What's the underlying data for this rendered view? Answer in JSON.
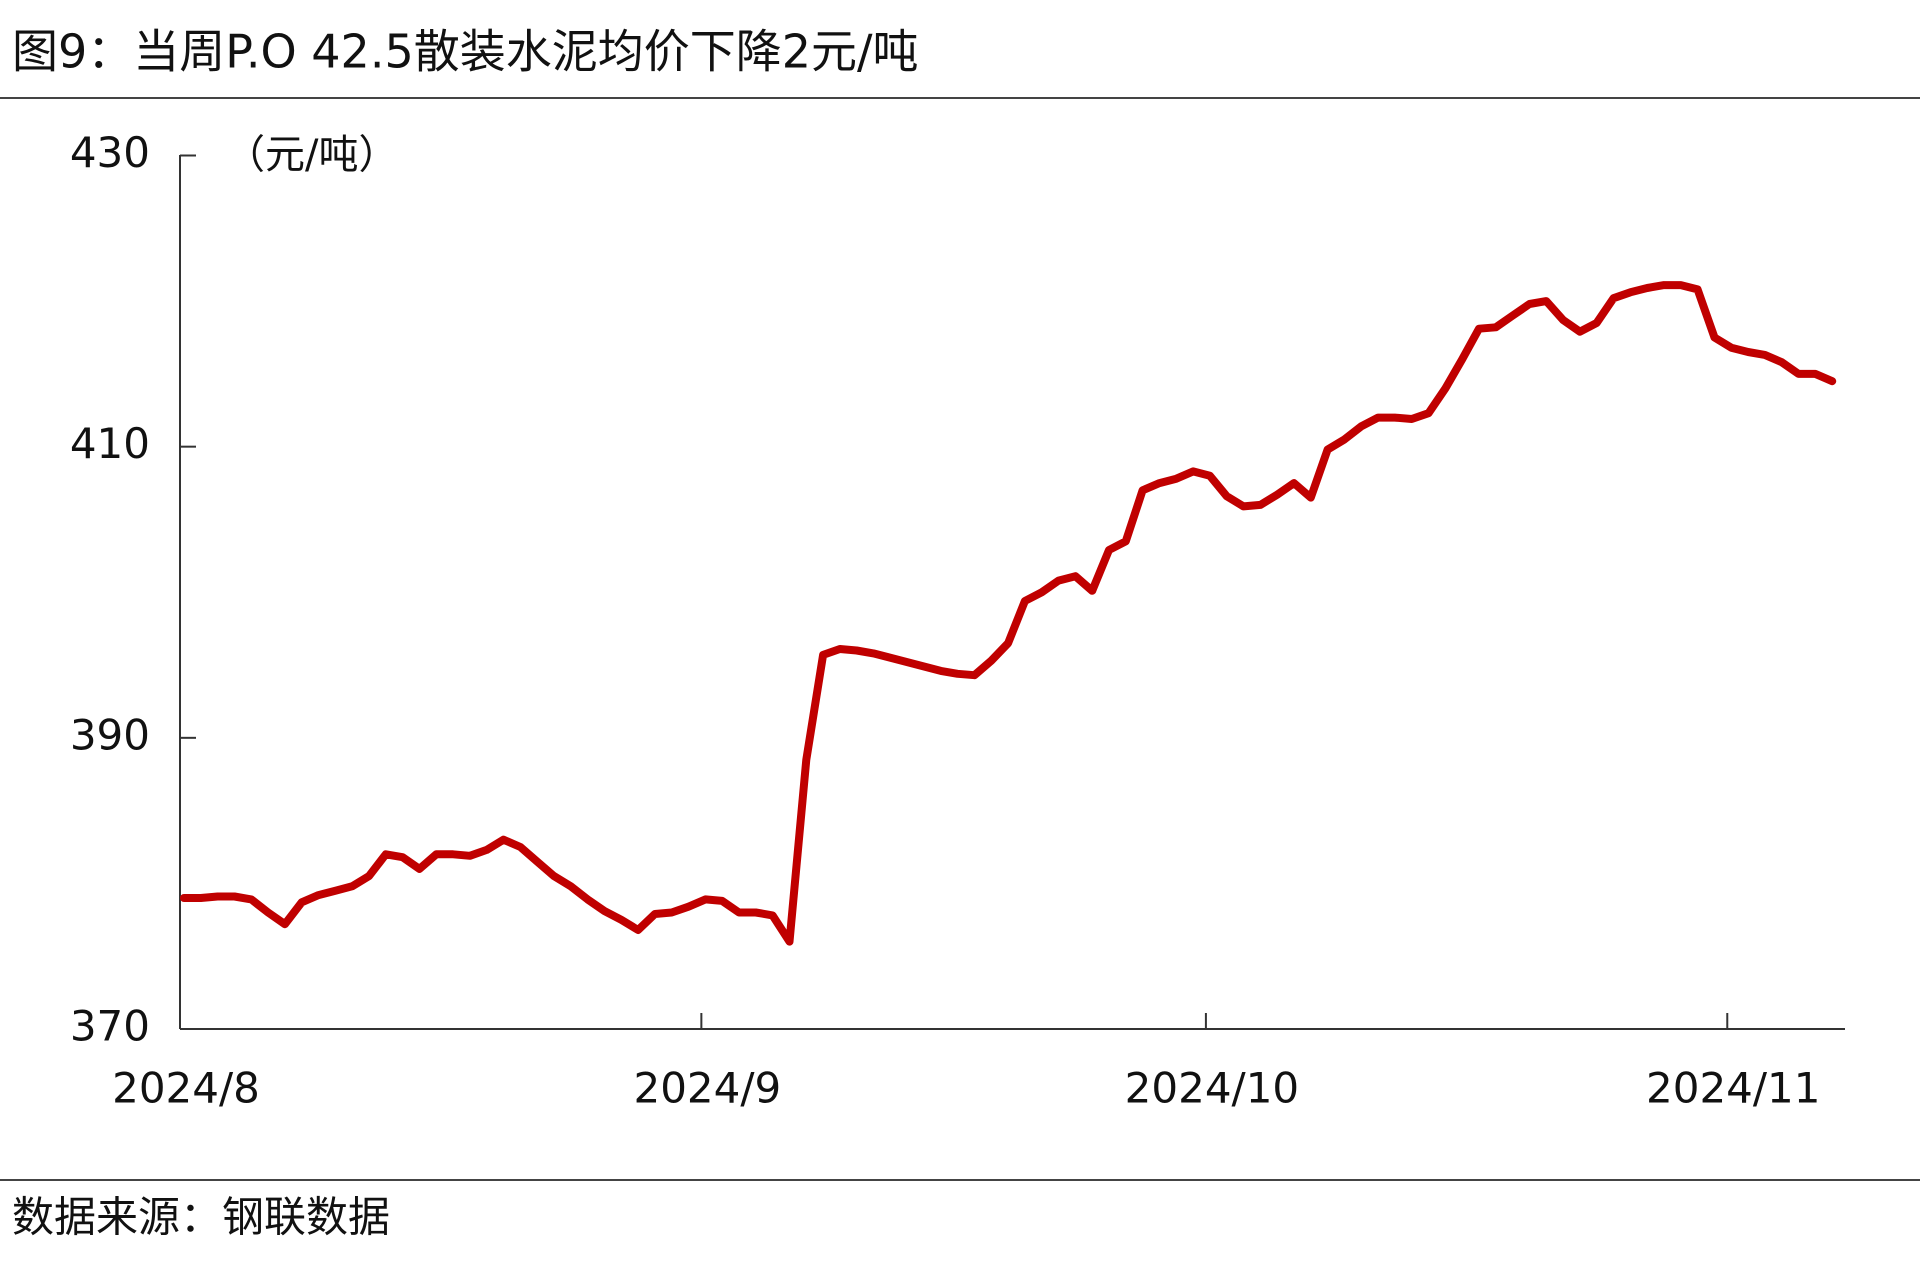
{
  "chart_data": {
    "type": "line",
    "title": "图9：当周P.O 42.5散装水泥均价下降2元/吨",
    "y_label": "（元/吨）",
    "source": "数据来源：钢联数据",
    "color": "#c00000",
    "categories": [
      "2024/8",
      null,
      null,
      null,
      null,
      null,
      null,
      null,
      null,
      null,
      null,
      null,
      null,
      null,
      null,
      null,
      null,
      null,
      null,
      null,
      null,
      null,
      null,
      null,
      null,
      null,
      null,
      null,
      null,
      null,
      null,
      "2024/9",
      null,
      null,
      null,
      null,
      null,
      null,
      null,
      null,
      null,
      null,
      null,
      null,
      null,
      null,
      null,
      null,
      null,
      null,
      null,
      null,
      null,
      null,
      null,
      null,
      null,
      null,
      null,
      null,
      null,
      "2024/10",
      null,
      null,
      null,
      null,
      null,
      null,
      null,
      null,
      null,
      null,
      null,
      null,
      null,
      null,
      null,
      null,
      null,
      null,
      null,
      null,
      null,
      null,
      null,
      null,
      null,
      null,
      null,
      null,
      null,
      null,
      "2024/11",
      null,
      null,
      null,
      null,
      null,
      null
    ],
    "values": [
      379.0,
      379.0,
      379.1,
      379.1,
      378.9,
      378.0,
      377.2,
      378.7,
      379.2,
      379.5,
      379.8,
      380.5,
      382.0,
      381.8,
      381.0,
      382.0,
      382.0,
      381.9,
      382.3,
      383.0,
      382.5,
      381.5,
      380.5,
      379.8,
      378.9,
      378.1,
      377.5,
      376.8,
      377.9,
      378.0,
      378.4,
      378.9,
      378.8,
      378.0,
      378.0,
      377.8,
      376.0,
      388.5,
      395.7,
      396.1,
      396.0,
      395.8,
      395.5,
      395.2,
      394.9,
      394.6,
      394.4,
      394.3,
      395.3,
      396.5,
      399.4,
      400.0,
      400.8,
      401.1,
      400.1,
      402.9,
      403.5,
      407.0,
      407.5,
      407.8,
      408.3,
      408.0,
      406.6,
      405.9,
      406.0,
      406.7,
      407.5,
      406.5,
      409.8,
      410.5,
      411.4,
      412.0,
      412.0,
      411.9,
      412.3,
      414.0,
      416.0,
      418.1,
      418.2,
      419.0,
      419.8,
      420.0,
      418.7,
      417.9,
      418.5,
      420.2,
      420.6,
      420.9,
      421.1,
      421.1,
      420.8,
      417.5,
      416.8,
      416.5,
      416.3,
      415.8,
      415.0,
      415.0,
      414.5
    ],
    "ylim": [
      370,
      430
    ],
    "yticks": [
      370,
      390,
      410,
      430
    ]
  }
}
